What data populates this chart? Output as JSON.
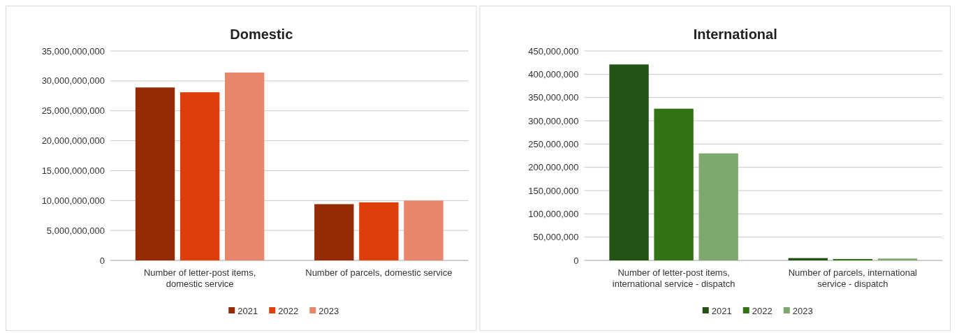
{
  "chart_data": [
    {
      "type": "bar",
      "title": "Domestic",
      "categories": [
        "Number of letter-post items, domestic service",
        "Number of parcels, domestic service"
      ],
      "series": [
        {
          "name": "2021",
          "color": "#952b05",
          "values": [
            28900000000,
            9400000000
          ]
        },
        {
          "name": "2022",
          "color": "#de3f0a",
          "values": [
            28100000000,
            9700000000
          ]
        },
        {
          "name": "2023",
          "color": "#e8866b",
          "values": [
            31400000000,
            10000000000
          ]
        }
      ],
      "ylim": [
        0,
        35000000000
      ],
      "yticks": [
        {
          "value": 0,
          "label": "0"
        },
        {
          "value": 5000000000,
          "label": "5,000,000,000"
        },
        {
          "value": 10000000000,
          "label": "10,000,000,000"
        },
        {
          "value": 15000000000,
          "label": "15,000,000,000"
        },
        {
          "value": 20000000000,
          "label": "20,000,000,000"
        },
        {
          "value": 25000000000,
          "label": "25,000,000,000"
        },
        {
          "value": 30000000000,
          "label": "30,000,000,000"
        },
        {
          "value": 35000000000,
          "label": "35,000,000,000"
        }
      ],
      "grid": "y",
      "legend": "bottom"
    },
    {
      "type": "bar",
      "title": "International",
      "categories": [
        "Number of letter-post items, international service - dispatch",
        "Number of parcels, international service - dispatch"
      ],
      "series": [
        {
          "name": "2021",
          "color": "#225214",
          "values": [
            421000000,
            5000000
          ]
        },
        {
          "name": "2022",
          "color": "#337316",
          "values": [
            326000000,
            3000000
          ]
        },
        {
          "name": "2023",
          "color": "#7ea86d",
          "values": [
            230000000,
            4000000
          ]
        }
      ],
      "ylim": [
        0,
        450000000
      ],
      "yticks": [
        {
          "value": 0,
          "label": "0"
        },
        {
          "value": 50000000,
          "label": "50,000,000"
        },
        {
          "value": 100000000,
          "label": "100,000,000"
        },
        {
          "value": 150000000,
          "label": "150,000,000"
        },
        {
          "value": 200000000,
          "label": "200,000,000"
        },
        {
          "value": 250000000,
          "label": "250,000,000"
        },
        {
          "value": 300000000,
          "label": "300,000,000"
        },
        {
          "value": 350000000,
          "label": "350,000,000"
        },
        {
          "value": 400000000,
          "label": "400,000,000"
        },
        {
          "value": 450000000,
          "label": "450,000,000"
        }
      ],
      "grid": "y",
      "legend": "bottom"
    }
  ]
}
